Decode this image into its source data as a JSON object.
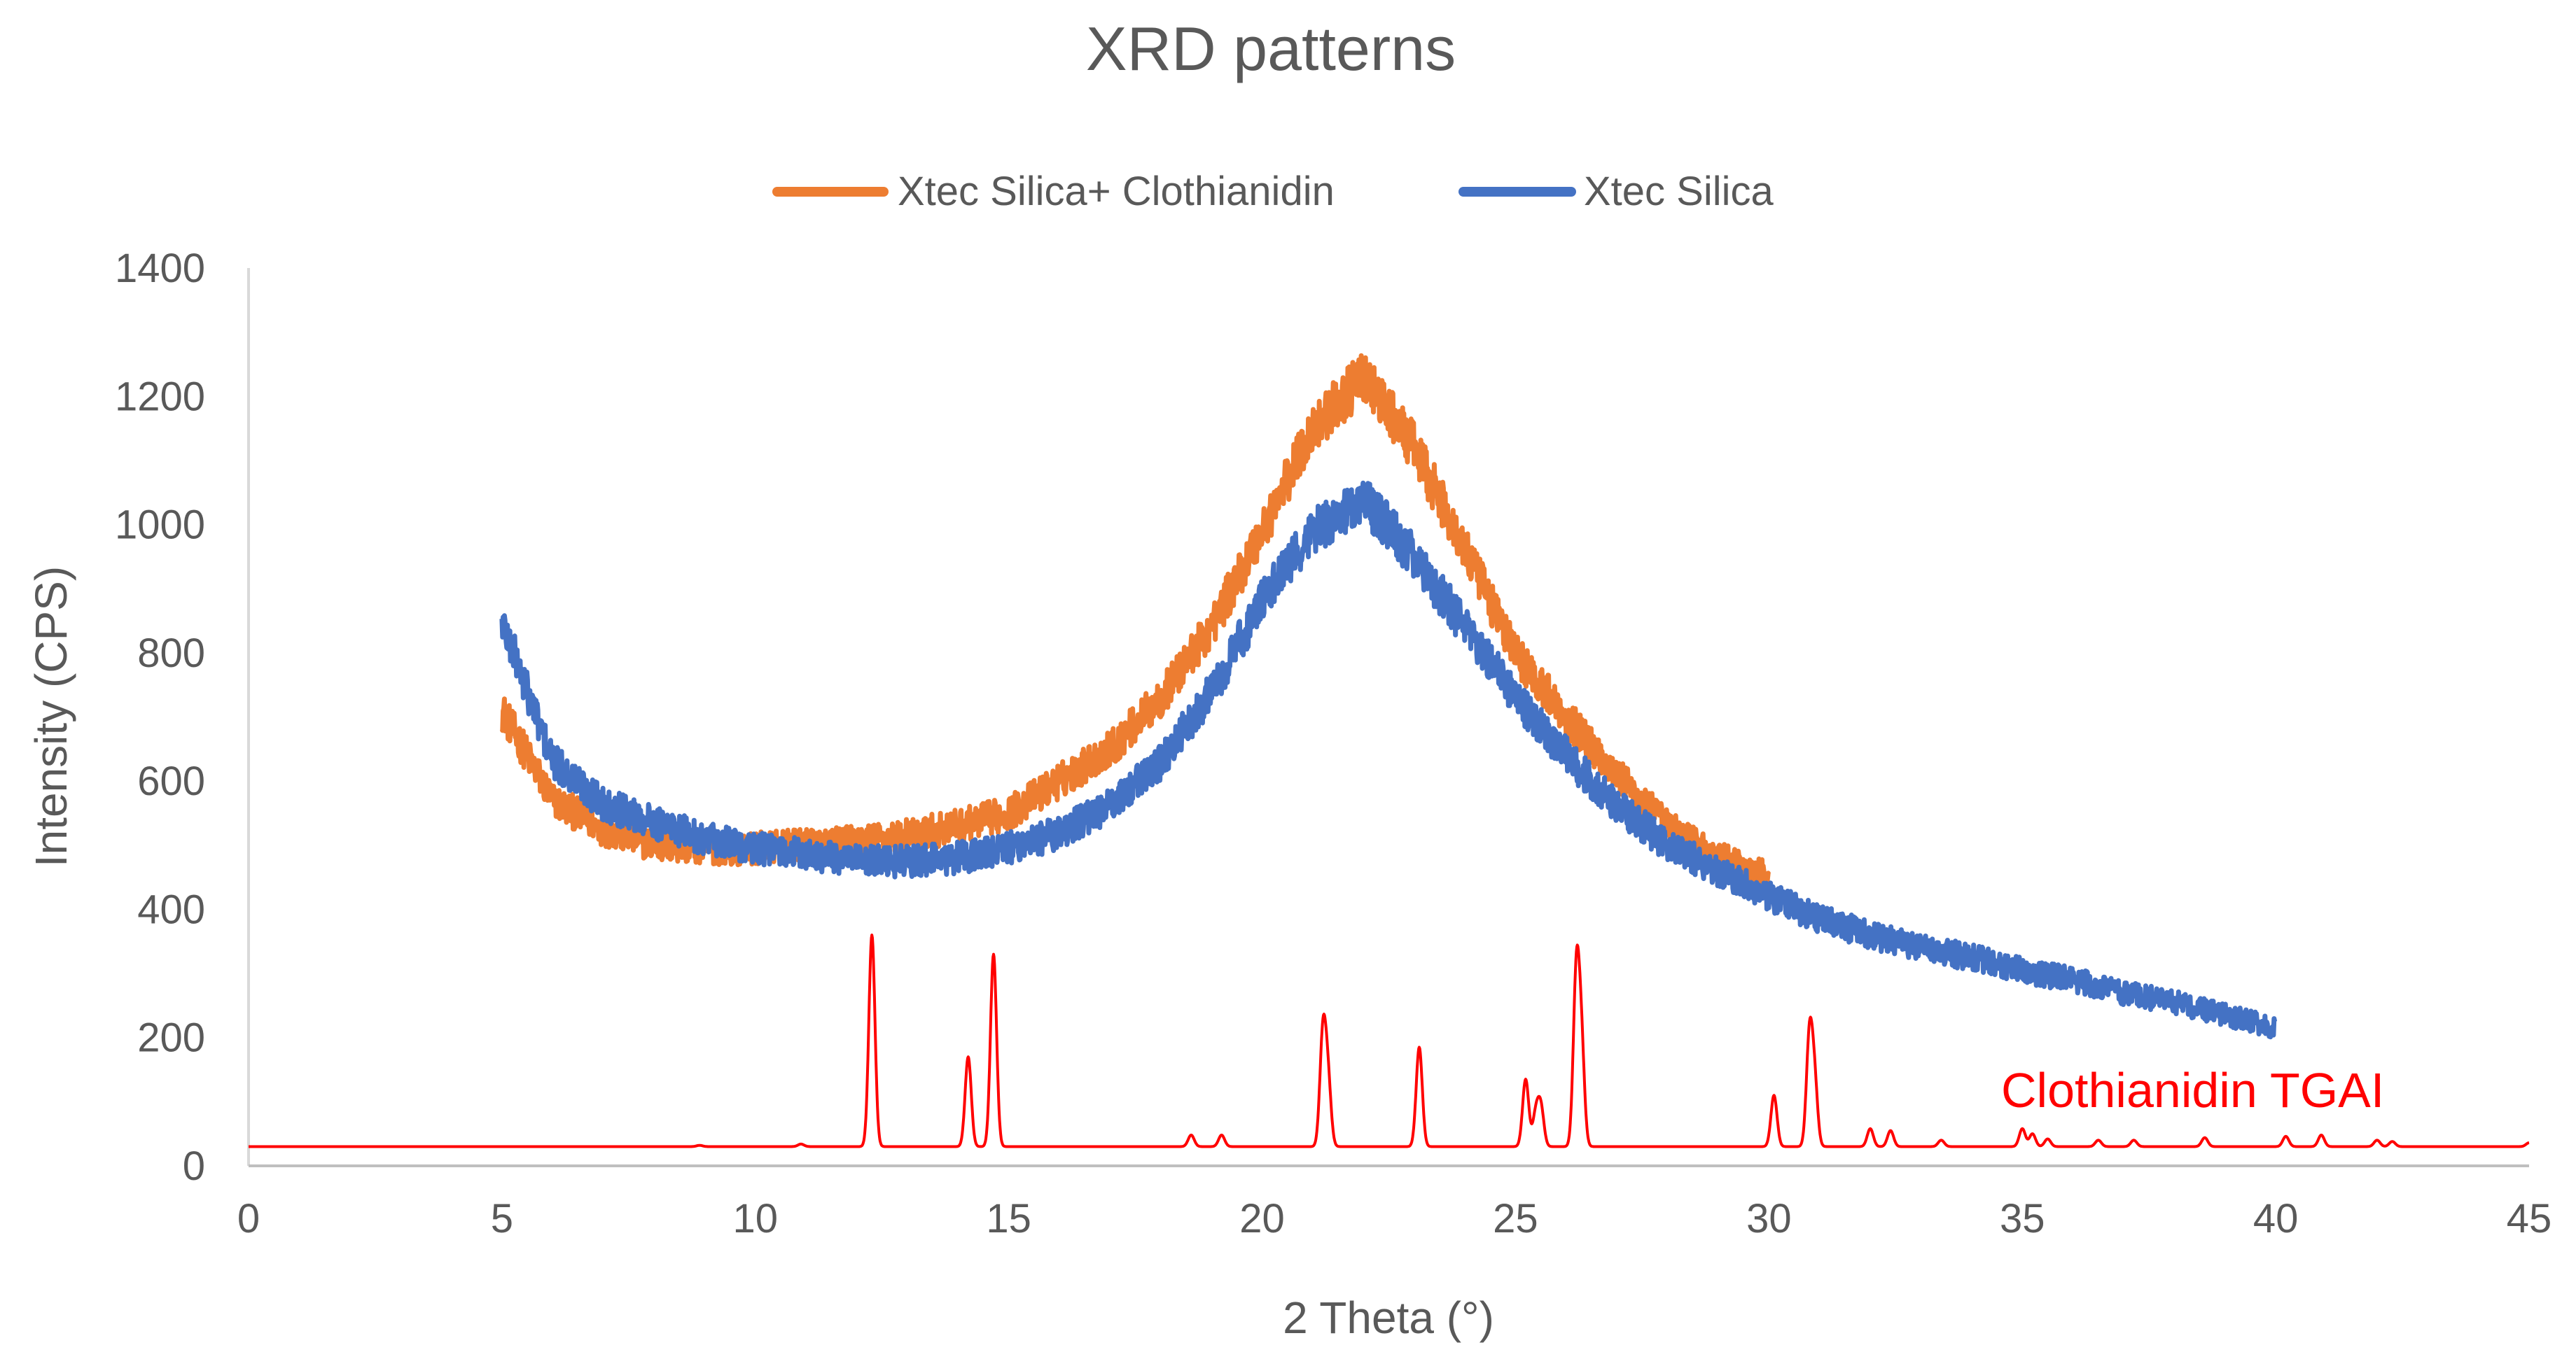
{
  "chart_data": {
    "type": "line",
    "title": "XRD patterns",
    "xlabel": "2 Theta (°)",
    "ylabel": "Intensity  (CPS)",
    "xlim": [
      0,
      45
    ],
    "ylim": [
      0,
      1400
    ],
    "xticks": [
      0,
      5,
      10,
      15,
      20,
      25,
      30,
      35,
      40,
      45
    ],
    "yticks": [
      0,
      200,
      400,
      600,
      800,
      1000,
      1200,
      1400
    ],
    "grid": false,
    "legend_position": "top-center",
    "legend": [
      {
        "name": "Xtec Silica+ Clothianidin",
        "color": "#ED7D31"
      },
      {
        "name": "Xtec Silica",
        "color": "#4472C4"
      }
    ],
    "annotation": {
      "text": "Clothianidin TGAI",
      "color": "#FF0000",
      "x": 35,
      "y": 100
    },
    "series": [
      {
        "name": "Xtec Silica+ Clothianidin",
        "color": "#ED7D31",
        "x_range": [
          5,
          30
        ],
        "noise": 28,
        "points": [
          [
            5,
            710
          ],
          [
            6,
            570
          ],
          [
            7,
            525
          ],
          [
            8,
            500
          ],
          [
            9,
            495
          ],
          [
            10,
            495
          ],
          [
            11,
            500
          ],
          [
            12,
            505
          ],
          [
            13,
            515
          ],
          [
            14,
            530
          ],
          [
            15,
            550
          ],
          [
            16,
            600
          ],
          [
            17,
            650
          ],
          [
            18,
            730
          ],
          [
            19,
            840
          ],
          [
            20,
            990
          ],
          [
            21,
            1150
          ],
          [
            22,
            1230
          ],
          [
            23,
            1120
          ],
          [
            24,
            960
          ],
          [
            25,
            800
          ],
          [
            26,
            700
          ],
          [
            27,
            610
          ],
          [
            28,
            530
          ],
          [
            29,
            480
          ],
          [
            30,
            450
          ]
        ]
      },
      {
        "name": "Xtec Silica",
        "color": "#4472C4",
        "x_range": [
          5,
          40
        ],
        "noise": 28,
        "points": [
          [
            5,
            850
          ],
          [
            6,
            630
          ],
          [
            7,
            565
          ],
          [
            8,
            535
          ],
          [
            9,
            510
          ],
          [
            10,
            495
          ],
          [
            11,
            485
          ],
          [
            12,
            475
          ],
          [
            13,
            475
          ],
          [
            14,
            480
          ],
          [
            15,
            495
          ],
          [
            16,
            520
          ],
          [
            17,
            560
          ],
          [
            18,
            630
          ],
          [
            19,
            740
          ],
          [
            20,
            880
          ],
          [
            21,
            990
          ],
          [
            22,
            1040
          ],
          [
            23,
            950
          ],
          [
            24,
            840
          ],
          [
            25,
            730
          ],
          [
            26,
            640
          ],
          [
            27,
            560
          ],
          [
            28,
            500
          ],
          [
            29,
            460
          ],
          [
            30,
            420
          ],
          [
            31,
            385
          ],
          [
            32,
            360
          ],
          [
            33,
            340
          ],
          [
            34,
            325
          ],
          [
            35,
            305
          ],
          [
            36,
            290
          ],
          [
            37,
            270
          ],
          [
            38,
            255
          ],
          [
            39,
            235
          ],
          [
            40,
            215
          ]
        ]
      },
      {
        "name": "Clothianidin TGAI",
        "color": "#FF0000",
        "x_range": [
          0,
          45
        ],
        "baseline": 30,
        "peaks": [
          [
            8.9,
            2
          ],
          [
            10.9,
            4
          ],
          [
            12.3,
            330
          ],
          [
            14.2,
            140
          ],
          [
            14.7,
            300
          ],
          [
            18.6,
            18
          ],
          [
            19.2,
            18
          ],
          [
            21.2,
            175
          ],
          [
            21.3,
            100
          ],
          [
            23.1,
            155
          ],
          [
            25.2,
            105
          ],
          [
            25.4,
            50
          ],
          [
            25.5,
            60
          ],
          [
            26.2,
            265
          ],
          [
            26.3,
            155
          ],
          [
            30.1,
            80
          ],
          [
            30.8,
            170
          ],
          [
            30.9,
            100
          ],
          [
            32.0,
            28
          ],
          [
            32.4,
            25
          ],
          [
            33.4,
            10
          ],
          [
            35.0,
            28
          ],
          [
            35.2,
            20
          ],
          [
            35.5,
            12
          ],
          [
            36.5,
            10
          ],
          [
            37.2,
            10
          ],
          [
            38.6,
            14
          ],
          [
            40.2,
            16
          ],
          [
            40.9,
            18
          ],
          [
            42.0,
            10
          ],
          [
            42.3,
            8
          ],
          [
            45.0,
            6
          ]
        ]
      }
    ]
  }
}
